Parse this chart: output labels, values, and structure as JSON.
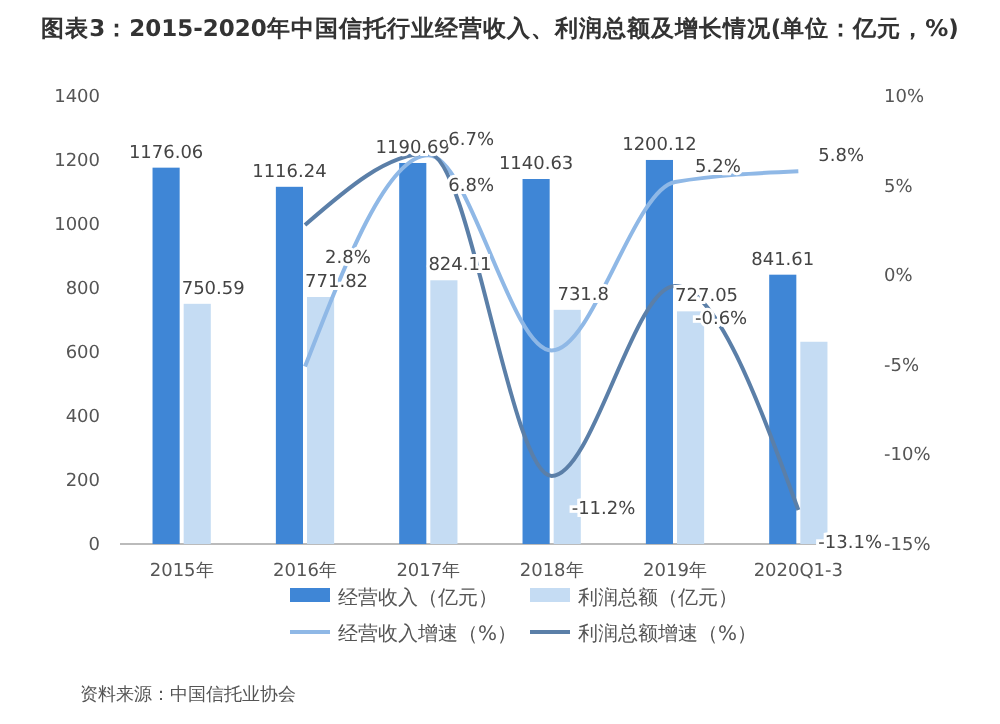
{
  "chart_data": {
    "type": "bar",
    "title": "图表3：2015-2020年中国信托行业经营收入、利润总额及增长情况(单位：亿元，%)",
    "categories": [
      "2015年",
      "2016年",
      "2017年",
      "2018年",
      "2019年",
      "2020Q1-3"
    ],
    "series": [
      {
        "name": "经营收入（亿元）",
        "color": "#3f86d6",
        "values": [
          1176.06,
          1116.24,
          1190.69,
          1140.63,
          1200.12,
          841.61
        ],
        "value_labels": [
          "1176.06",
          "1116.24",
          "1190.69",
          "1140.63",
          "1200.12",
          "841.61"
        ]
      },
      {
        "name": "利润总额（亿元）",
        "color": "#c5dcf3",
        "values": [
          750.59,
          771.82,
          824.11,
          731.8,
          727.05,
          632
        ],
        "value_labels": [
          "750.59",
          "771.82",
          "824.11",
          "731.8",
          "727.05",
          null
        ]
      },
      {
        "name": "经营收入增速（%）",
        "type": "line",
        "axis": "y2",
        "color": "#8fb8e6",
        "values": [
          null,
          -5.1,
          6.7,
          -4.2,
          5.2,
          5.8
        ],
        "value_labels": [
          null,
          null,
          "6.7%",
          null,
          "5.2%",
          "5.8%"
        ]
      },
      {
        "name": "利润总额增速（%）",
        "type": "line",
        "axis": "y2",
        "color": "#5b7fa8",
        "values": [
          null,
          2.8,
          6.8,
          -11.2,
          -0.6,
          -13.1
        ],
        "value_labels": [
          null,
          "2.8%",
          "6.8%",
          "-11.2%",
          "-0.6%",
          "-13.1%"
        ]
      }
    ],
    "ylim": [
      0,
      1400
    ],
    "yticks": [
      0,
      200,
      400,
      600,
      800,
      1000,
      1200,
      1400
    ],
    "y2lim": [
      -15,
      10
    ],
    "y2ticks": [
      {
        "value": -15,
        "label": "-15%"
      },
      {
        "value": -10,
        "label": "-10%"
      },
      {
        "value": -5,
        "label": "-5%"
      },
      {
        "value": 0,
        "label": "0%"
      },
      {
        "value": 5,
        "label": "5%"
      },
      {
        "value": 10,
        "label": "10%"
      }
    ],
    "legend": "bottom",
    "grid": false,
    "annotations": [
      "资料来源：中国信托业协会"
    ]
  }
}
